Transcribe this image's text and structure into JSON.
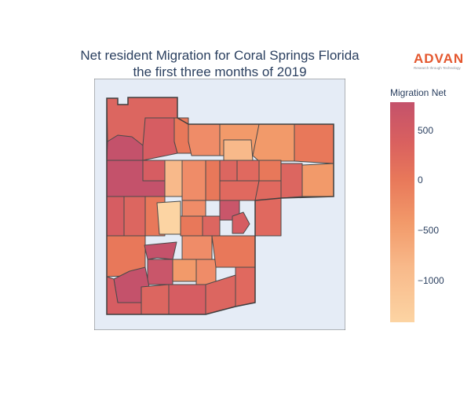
{
  "chart": {
    "title_line1": "Net resident Migration for Coral Springs Florida",
    "title_line2": "the first three months of 2019"
  },
  "logo": {
    "word": "ADVAN",
    "tagline": "Research through Technology"
  },
  "colorbar": {
    "title": "Migration Net",
    "ticks": [
      "500",
      "0",
      "−500",
      "−1000"
    ],
    "colorscale": [
      "#fcd4a3",
      "#f8b98a",
      "#f29a6a",
      "#e8785a",
      "#d9605f",
      "#c4526b"
    ]
  },
  "colors": {
    "geo_bg": "#e5ecf6",
    "border": "#4a4a4a",
    "title": "#2a3f5f",
    "brand": "#e4572e"
  },
  "chart_data": {
    "type": "choropleth",
    "title": "Net resident Migration for Coral Springs Florida the first three months of 2019",
    "colorbar_title": "Migration Net",
    "color_range": [
      -1400,
      800
    ],
    "colorbar_ticks": [
      500,
      0,
      -500,
      -1000
    ],
    "regions_values": [
      500,
      150,
      350,
      150,
      100,
      0,
      -100,
      -200,
      -400,
      -300,
      0,
      150,
      700,
      500,
      200,
      -100,
      0,
      -600,
      -300,
      -200,
      100,
      250,
      0,
      -300,
      -700,
      600,
      200,
      -300,
      -1400,
      -400,
      100,
      -200,
      400,
      300,
      150,
      -200,
      700,
      600,
      -300,
      -600,
      -400,
      -300,
      800,
      400,
      500,
      300,
      200,
      0
    ]
  }
}
